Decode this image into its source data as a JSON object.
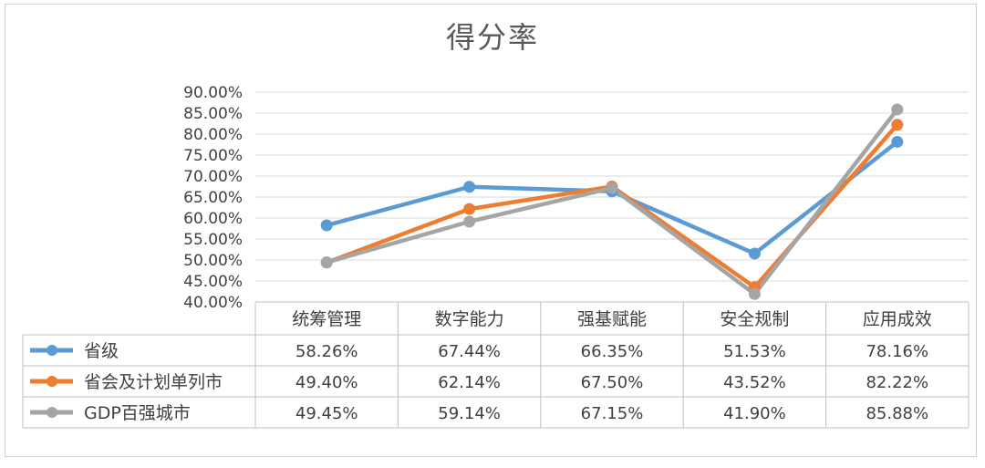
{
  "chart_data": {
    "type": "line",
    "title": "得分率",
    "categories": [
      "统筹管理",
      "数字能力",
      "强基赋能",
      "安全规制",
      "应用成效"
    ],
    "yticks": [
      "90.00%",
      "85.00%",
      "80.00%",
      "75.00%",
      "70.00%",
      "65.00%",
      "60.00%",
      "55.00%",
      "50.00%",
      "45.00%",
      "40.00%"
    ],
    "ylim": [
      40,
      90
    ],
    "grid": true,
    "legend": "data-table",
    "series": [
      {
        "name": "省级",
        "color": "#5B9BD5",
        "values": [
          58.26,
          67.44,
          66.35,
          51.53,
          78.16
        ],
        "labels": [
          "58.26%",
          "67.44%",
          "66.35%",
          "51.53%",
          "78.16%"
        ]
      },
      {
        "name": "省会及计划单列市",
        "color": "#ED7D31",
        "values": [
          49.4,
          62.14,
          67.5,
          43.52,
          82.22
        ],
        "labels": [
          "49.40%",
          "62.14%",
          "67.50%",
          "43.52%",
          "82.22%"
        ]
      },
      {
        "name": "GDP百强城市",
        "color": "#A5A5A5",
        "values": [
          49.45,
          59.14,
          67.15,
          41.9,
          85.88
        ],
        "labels": [
          "49.45%",
          "59.14%",
          "67.15%",
          "41.90%",
          "85.88%"
        ]
      }
    ]
  }
}
